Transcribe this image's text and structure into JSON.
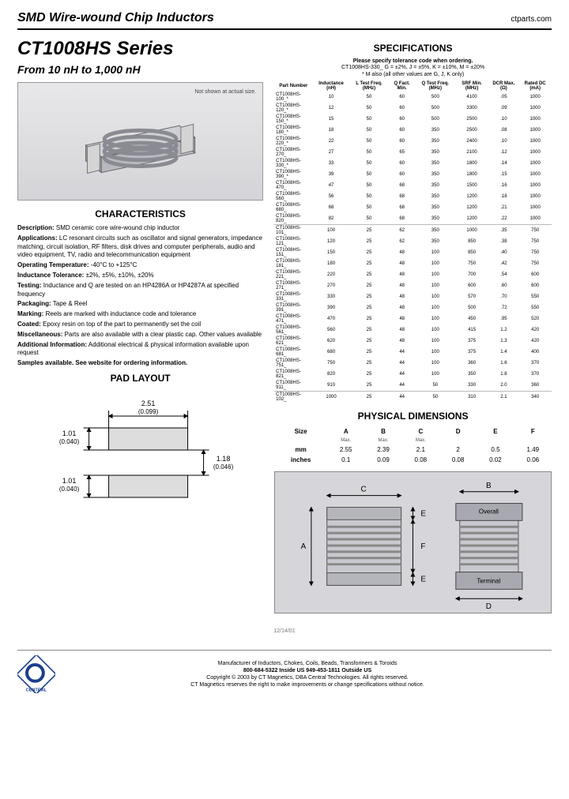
{
  "header": {
    "title": "SMD Wire-wound Chip Inductors",
    "site": "ctparts.com"
  },
  "series": {
    "name": "CT1008HS Series",
    "subtitle": "From 10 nH to 1,000 nH"
  },
  "fig_note": "Not shown at actual size.",
  "sect": {
    "char": "CHARACTERISTICS",
    "spec": "SPECIFICATIONS",
    "phys": "PHYSICAL DIMENSIONS",
    "pad": "PAD LAYOUT"
  },
  "characteristics": {
    "desc_l": "Description:",
    "desc": "SMD ceramic core wire-wound chip inductor",
    "app_l": "Applications:",
    "app": "LC resonant circuits such as oscillator and signal generators, impedance matching, circuit isolation, RF filters, disk drives and computer peripherals, audio and video equipment, TV, radio and telecommunication equipment",
    "temp_l": "Operating Temperature:",
    "temp": "-40°C to +125°C",
    "tol_l": "Inductance Tolerance:",
    "tol": "±2%, ±5%, ±10%, ±20%",
    "test_l": "Testing:",
    "test": "Inductance and Q are tested on an HP4286A or HP4287A at specified frequency",
    "pkg_l": "Packaging:",
    "pkg": "Tape & Reel",
    "mark_l": "Marking:",
    "mark": "Reels are marked with inductance code and tolerance",
    "coat_l": "Coated:",
    "coat": "Epoxy resin on top of the part to permanently set the coil",
    "misc_l": "Miscellaneous:",
    "misc": "Parts are also available with a clear plastic cap. Other values available",
    "add_l": "Additional Information:",
    "add": "Additional electrical & physical information available upon request",
    "samp": "Samples available. See website for ordering information."
  },
  "spec_note": {
    "l1": "Please specify tolerance code when ordering.",
    "l2": "CT1008HS-330_      G = ±2%, J = ±5%, K = ±10%, M = ±20%",
    "l3": "* M also (all other values are G, J, K only)"
  },
  "spec_headers": [
    "Part Number",
    "Inductance (nH)",
    "L Test Freq. (MHz)",
    "Q Fact. Min.",
    "Q Test Freq. (MHz)",
    "SRF Min. (MHz)",
    "DCR Max. (Ω)",
    "Rated DC (mA)"
  ],
  "spec_rows_a": [
    [
      "CT1008HS-100_*",
      "10",
      "50",
      "60",
      "500",
      "4100",
      ".05",
      "1000"
    ],
    [
      "CT1008HS-120_*",
      "12",
      "50",
      "60",
      "500",
      "3300",
      ".09",
      "1000"
    ],
    [
      "CT1008HS-150_*",
      "15",
      "50",
      "60",
      "500",
      "2500",
      ".10",
      "1000"
    ],
    [
      "CT1008HS-180_*",
      "18",
      "50",
      "60",
      "350",
      "2500",
      ".08",
      "1000"
    ],
    [
      "CT1008HS-220_*",
      "22",
      "50",
      "60",
      "350",
      "2400",
      ".10",
      "1000"
    ],
    [
      "CT1008HS-270_",
      "27",
      "50",
      "65",
      "350",
      "2100",
      ".12",
      "1000"
    ],
    [
      "CT1008HS-330_*",
      "33",
      "50",
      "60",
      "350",
      "1800",
      ".14",
      "1000"
    ],
    [
      "CT1008HS-390_*",
      "39",
      "50",
      "60",
      "350",
      "1800",
      ".15",
      "1000"
    ],
    [
      "CT1008HS-470_",
      "47",
      "50",
      "68",
      "350",
      "1500",
      ".16",
      "1000"
    ],
    [
      "CT1008HS-560_",
      "56",
      "50",
      "68",
      "350",
      "1200",
      ".18",
      "1000"
    ],
    [
      "CT1008HS-680_",
      "68",
      "50",
      "68",
      "350",
      "1200",
      ".21",
      "1000"
    ],
    [
      "CT1008HS-820_",
      "82",
      "50",
      "68",
      "350",
      "1200",
      ".22",
      "1000"
    ]
  ],
  "spec_rows_b": [
    [
      "CT1008HS-101_",
      "100",
      "25",
      "62",
      "350",
      "1000",
      ".35",
      "750"
    ],
    [
      "CT1008HS-121_",
      "120",
      "25",
      "62",
      "350",
      "850",
      ".38",
      "750"
    ],
    [
      "CT1008HS-151_",
      "150",
      "25",
      "48",
      "100",
      "850",
      ".40",
      "750"
    ],
    [
      "CT1008HS-181_",
      "180",
      "25",
      "48",
      "100",
      "750",
      ".42",
      "750"
    ],
    [
      "CT1008HS-221_",
      "220",
      "25",
      "48",
      "100",
      "700",
      ".54",
      "600"
    ],
    [
      "CT1008HS-271_",
      "270",
      "25",
      "48",
      "100",
      "600",
      ".60",
      "600"
    ],
    [
      "CT1008HS-331_",
      "330",
      "25",
      "48",
      "100",
      "570",
      ".70",
      "550"
    ],
    [
      "CT1008HS-391_",
      "390",
      "25",
      "48",
      "100",
      "500",
      ".72",
      "550"
    ],
    [
      "CT1008HS-471_",
      "470",
      "25",
      "48",
      "100",
      "450",
      ".95",
      "520"
    ],
    [
      "CT1008HS-561_",
      "560",
      "25",
      "48",
      "100",
      "415",
      "1.2",
      "420"
    ],
    [
      "CT1008HS-621_",
      "620",
      "25",
      "48",
      "100",
      "375",
      "1.3",
      "420"
    ],
    [
      "CT1008HS-681_",
      "680",
      "25",
      "44",
      "100",
      "375",
      "1.4",
      "400"
    ],
    [
      "CT1008HS-751_",
      "750",
      "25",
      "44",
      "100",
      "360",
      "1.6",
      "370"
    ],
    [
      "CT1008HS-821_",
      "820",
      "25",
      "44",
      "100",
      "350",
      "1.8",
      "370"
    ],
    [
      "CT1008HS-911_",
      "910",
      "25",
      "44",
      "50",
      "330",
      "2.0",
      "360"
    ]
  ],
  "spec_rows_c": [
    [
      "CT1008HS-102_",
      "1000",
      "25",
      "44",
      "50",
      "310",
      "2.1",
      "340"
    ]
  ],
  "dim": {
    "headers": [
      "Size",
      "A",
      "B",
      "C",
      "D",
      "E",
      "F"
    ],
    "sub": [
      "",
      "Max.",
      "Max.",
      "Max.",
      "",
      "",
      ""
    ],
    "mm": [
      "mm",
      "2.55",
      "2.39",
      "2.1",
      "2",
      "0.5",
      "1.49"
    ],
    "in": [
      "inches",
      "0.1",
      "0.09",
      "0.08",
      "0.08",
      "0.02",
      "0.06"
    ]
  },
  "dim_labels": {
    "overall": "Overall",
    "terminal": "Terminal",
    "A": "A",
    "B": "B",
    "C": "C",
    "D": "D",
    "E": "E",
    "F": "F"
  },
  "pad": {
    "w": "2.51",
    "wi": "(0.099)",
    "h1": "1.01",
    "h1i": "(0.040)",
    "gap": "1.18",
    "gapi": "(0.046)",
    "h2": "1.01",
    "h2i": "(0.040)"
  },
  "footer": {
    "brand": "CENTRAL",
    "l1": "Manufacturer of Inductors, Chokes, Coils, Beads, Transformers & Toroids",
    "l2": "800-684-5322  Inside US     949-453-1811  Outside US",
    "l3": "Copyright © 2003 by CT Magnetics, DBA Central Technologies. All rights reserved.",
    "l4": "CT Magnetics reserves the right to make improvements or change specifications without notice.",
    "date": "12/14/01"
  },
  "colors": {
    "accent": "#1b3f8b",
    "coil": "#9a9aa2",
    "body": "#c8c8cf",
    "pad_fill": "#d8d8d8",
    "grid": "#888"
  }
}
